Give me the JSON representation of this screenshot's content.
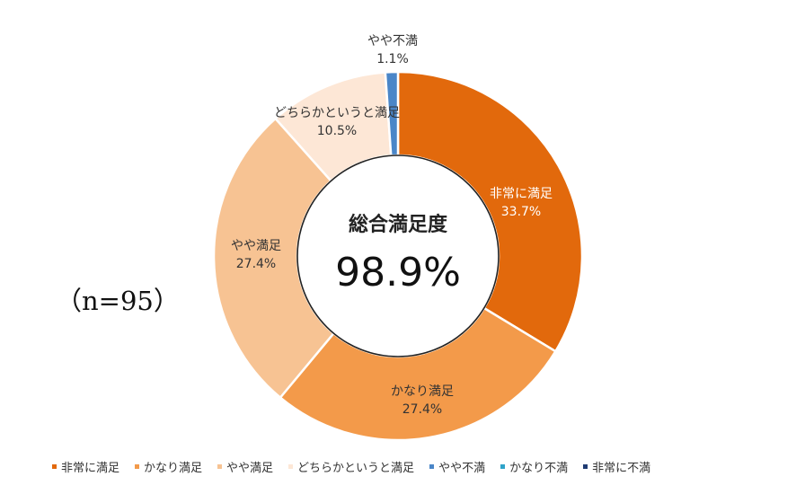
{
  "n_label": "（n=95）",
  "center": {
    "title": "総合満足度",
    "value": "98.9%"
  },
  "chart_data": {
    "type": "pie",
    "style": "donut",
    "unit": "%",
    "slices": [
      {
        "name": "非常に満足",
        "value": 33.7,
        "value_label": "33.7%",
        "color": "#e2690c"
      },
      {
        "name": "かなり満足",
        "value": 27.4,
        "value_label": "27.4%",
        "color": "#f39a4a"
      },
      {
        "name": "やや満足",
        "value": 27.4,
        "value_label": "27.4%",
        "color": "#f7c393"
      },
      {
        "name": "どちらかというと満足",
        "value": 10.5,
        "value_label": "10.5%",
        "color": "#fde7d6"
      },
      {
        "name": "やや不満",
        "value": 1.1,
        "value_label": "1.1%",
        "color": "#4a86c8"
      },
      {
        "name": "かなり不満",
        "value": 0,
        "value_label": "",
        "color": "#2fa3c9"
      },
      {
        "name": "非常に不満",
        "value": 0,
        "value_label": "",
        "color": "#1f3b73"
      }
    ],
    "legend_position": "bottom"
  }
}
